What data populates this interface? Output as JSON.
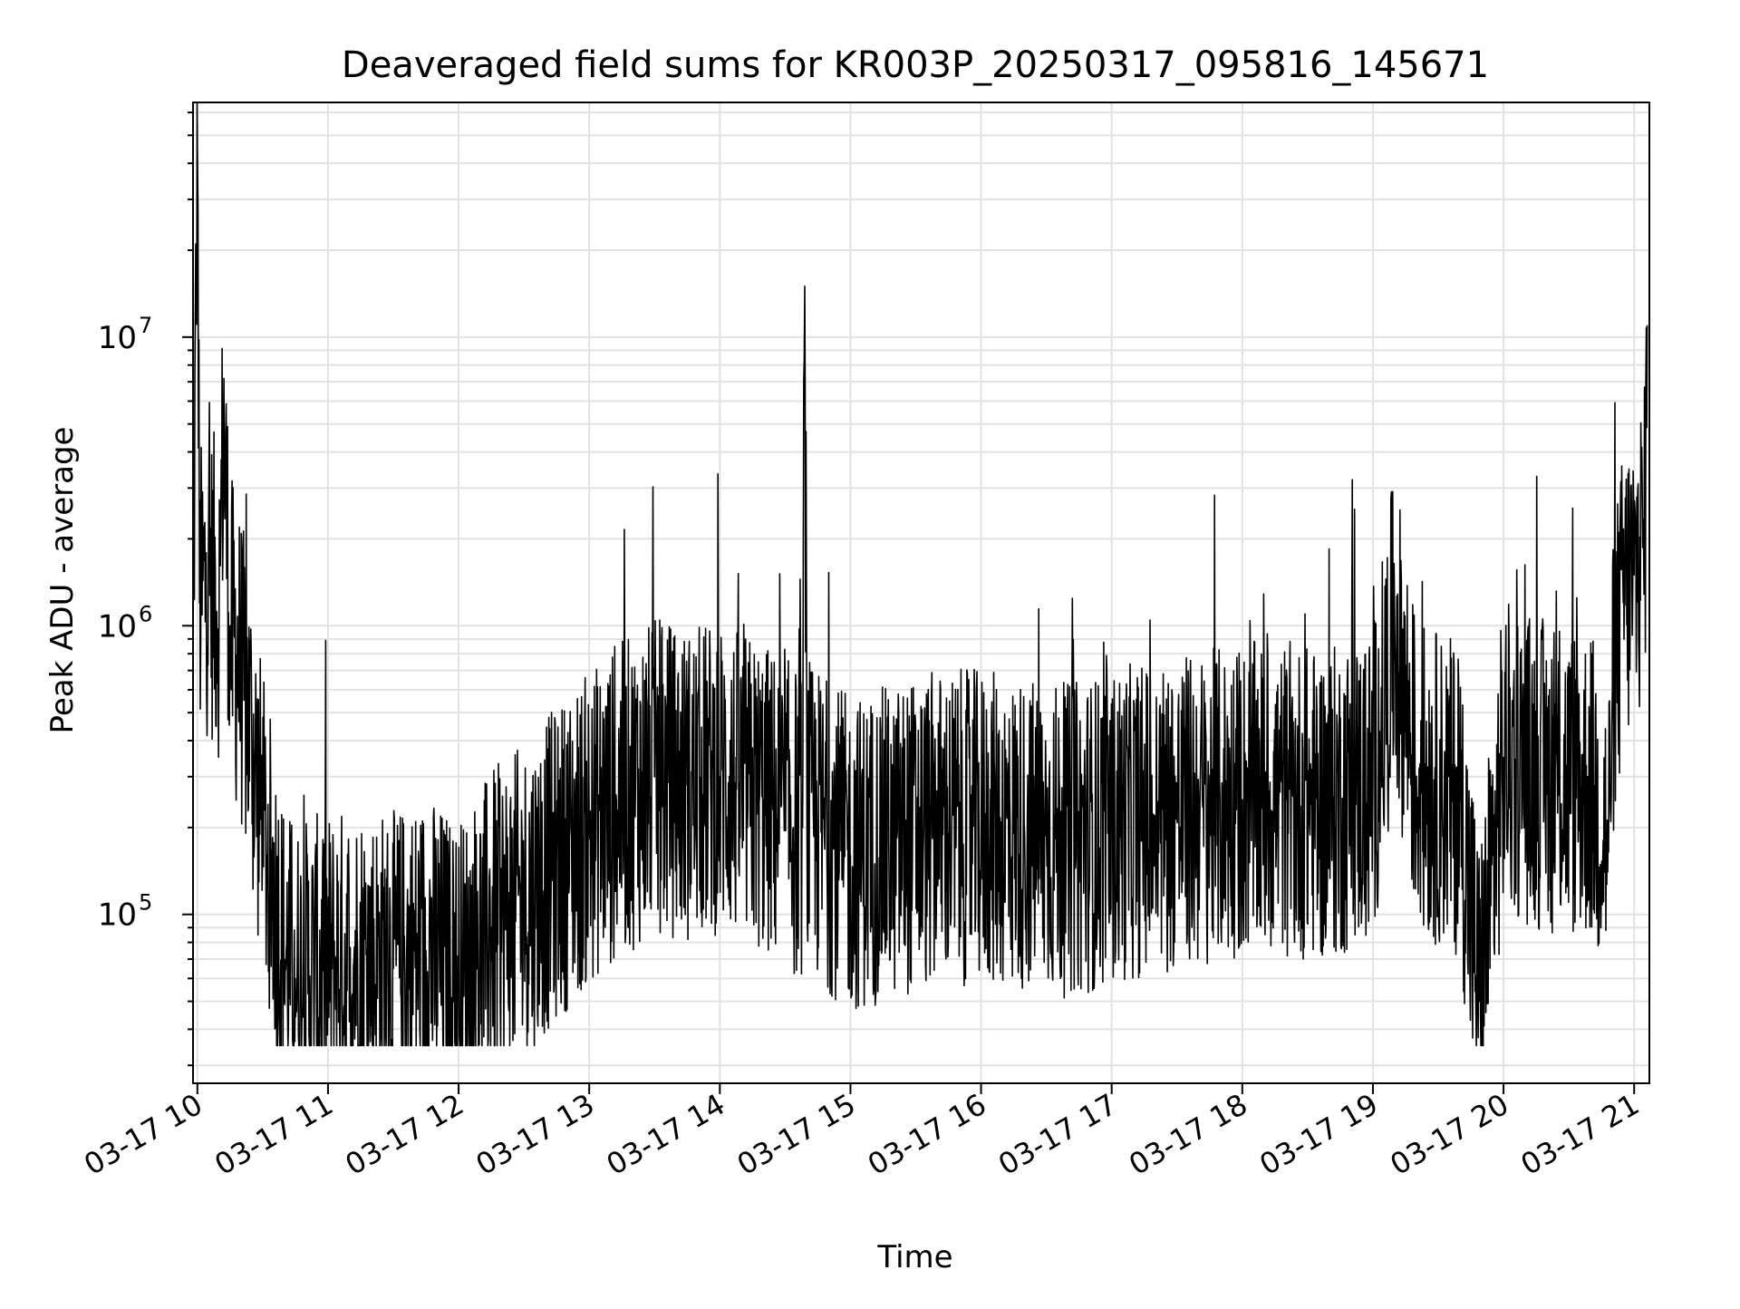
{
  "chart_data": {
    "type": "line",
    "title": "Deaveraged field sums for KR003P_20250317_095816_145671",
    "xlabel": "Time",
    "ylabel": "Peak ADU - average",
    "y_scale": "log",
    "ylim": [
      26000,
      65000000
    ],
    "xlim": [
      "2025-03-17 09:58",
      "2025-03-17 21:07"
    ],
    "grid": true,
    "legend": "none",
    "line_color": "#000000",
    "x_tick_labels": [
      "03-17 10",
      "03-17 11",
      "03-17 12",
      "03-17 13",
      "03-17 14",
      "03-17 15",
      "03-17 16",
      "03-17 17",
      "03-17 18",
      "03-17 19",
      "03-17 20",
      "03-17 21"
    ],
    "y_tick_labels": [
      {
        "base": "10",
        "exp": "5",
        "value": 100000
      },
      {
        "base": "10",
        "exp": "6",
        "value": 1000000
      },
      {
        "base": "10",
        "exp": "7",
        "value": 10000000
      }
    ],
    "series": [
      {
        "x": [
          "2025-03-17 09:58",
          "2025-03-17 10:00",
          "2025-03-17 10:01",
          "2025-03-17 10:05",
          "2025-03-17 10:10",
          "2025-03-17 10:12",
          "2025-03-17 10:15",
          "2025-03-17 10:20",
          "2025-03-17 10:25",
          "2025-03-17 10:30",
          "2025-03-17 10:35",
          "2025-03-17 10:40",
          "2025-03-17 10:45",
          "2025-03-17 11:00",
          "2025-03-17 11:15",
          "2025-03-17 11:30",
          "2025-03-17 11:45",
          "2025-03-17 12:00",
          "2025-03-17 12:15",
          "2025-03-17 12:30",
          "2025-03-17 12:45",
          "2025-03-17 13:00",
          "2025-03-17 13:15",
          "2025-03-17 13:30",
          "2025-03-17 13:45",
          "2025-03-17 14:00",
          "2025-03-17 14:20",
          "2025-03-17 14:38",
          "2025-03-17 14:39",
          "2025-03-17 14:40",
          "2025-03-17 15:00",
          "2025-03-17 15:20",
          "2025-03-17 15:40",
          "2025-03-17 16:00",
          "2025-03-17 16:20",
          "2025-03-17 16:40",
          "2025-03-17 17:00",
          "2025-03-17 17:20",
          "2025-03-17 17:40",
          "2025-03-17 18:00",
          "2025-03-17 18:20",
          "2025-03-17 18:40",
          "2025-03-17 19:00",
          "2025-03-17 19:10",
          "2025-03-17 19:20",
          "2025-03-17 19:40",
          "2025-03-17 19:49",
          "2025-03-17 20:00",
          "2025-03-17 20:20",
          "2025-03-17 20:40",
          "2025-03-17 20:48",
          "2025-03-17 20:50",
          "2025-03-17 20:55",
          "2025-03-17 21:00",
          "2025-03-17 21:05",
          "2025-03-17 21:06"
        ],
        "values": [
          800000,
          45000000,
          1200000,
          1500000,
          1200000,
          5000000,
          1000000,
          700000,
          400000,
          200000,
          120000,
          70000,
          60000,
          65000,
          70000,
          65000,
          75000,
          60000,
          90000,
          110000,
          150000,
          200000,
          250000,
          300000,
          280000,
          300000,
          250000,
          200000,
          15000000,
          220000,
          160000,
          180000,
          200000,
          200000,
          190000,
          180000,
          200000,
          220000,
          230000,
          250000,
          250000,
          240000,
          280000,
          1000000,
          300000,
          250000,
          50000,
          350000,
          300000,
          280000,
          180000,
          600000,
          1200000,
          1500000,
          2000000,
          11000000
        ]
      }
    ]
  }
}
